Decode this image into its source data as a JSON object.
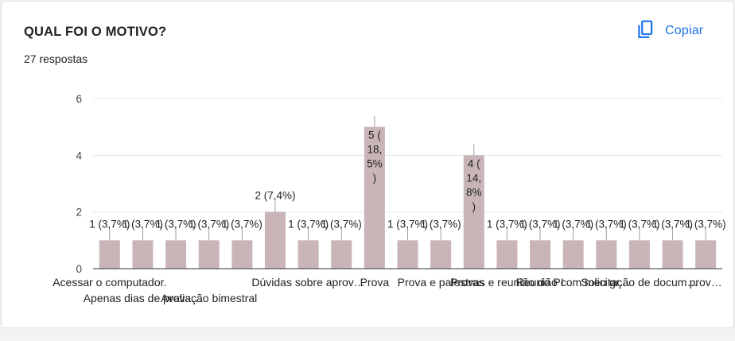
{
  "header": {
    "title": "QUAL FOI O MOTIVO?",
    "responses": "27 respostas",
    "copy_label": "Copiar"
  },
  "colors": {
    "bar": "#c9b5b7",
    "accent": "#1a73e8",
    "grid": "#e4e4e4",
    "axis": "#9e9e9e"
  },
  "icons": {
    "copy": "copy-icon"
  },
  "chart_data": {
    "type": "bar",
    "ylim": [
      0,
      6
    ],
    "yticks": [
      0,
      2,
      4,
      6
    ],
    "grid": true,
    "categories": [
      "Acessar o computador.",
      "Apenas dias de prova…",
      "",
      "Avaliação bimestral",
      "",
      "",
      "Dúvidas sobre aprov…",
      "",
      "Prova",
      "",
      "Prova e palestras",
      "",
      "Provas e reunião do PI",
      "",
      "Reunião com meu gr…",
      "",
      "Solicitação de docum…",
      "",
      "prov…"
    ],
    "values": [
      1,
      1,
      1,
      1,
      1,
      2,
      1,
      1,
      5,
      1,
      1,
      4,
      1,
      1,
      1,
      1,
      1,
      1,
      1
    ],
    "data_labels": [
      "1 (3,7%)",
      "1 (3,7%)",
      "1 (3,7%)",
      "1 (3,7%)",
      "1 (3,7%)",
      "2 (7,4%)",
      "1 (3,7%)",
      "1 (3,7%)",
      "5 (18,5%)",
      "1 (3,7%)",
      "1 (3,7%)",
      "4 (14,8%)",
      "1 (3,7%)",
      "1 (3,7%)",
      "1 (3,7%)",
      "1 (3,7%)",
      "1 (3,7%)",
      "1 (3,7%)",
      "1 (3,7%)"
    ]
  }
}
